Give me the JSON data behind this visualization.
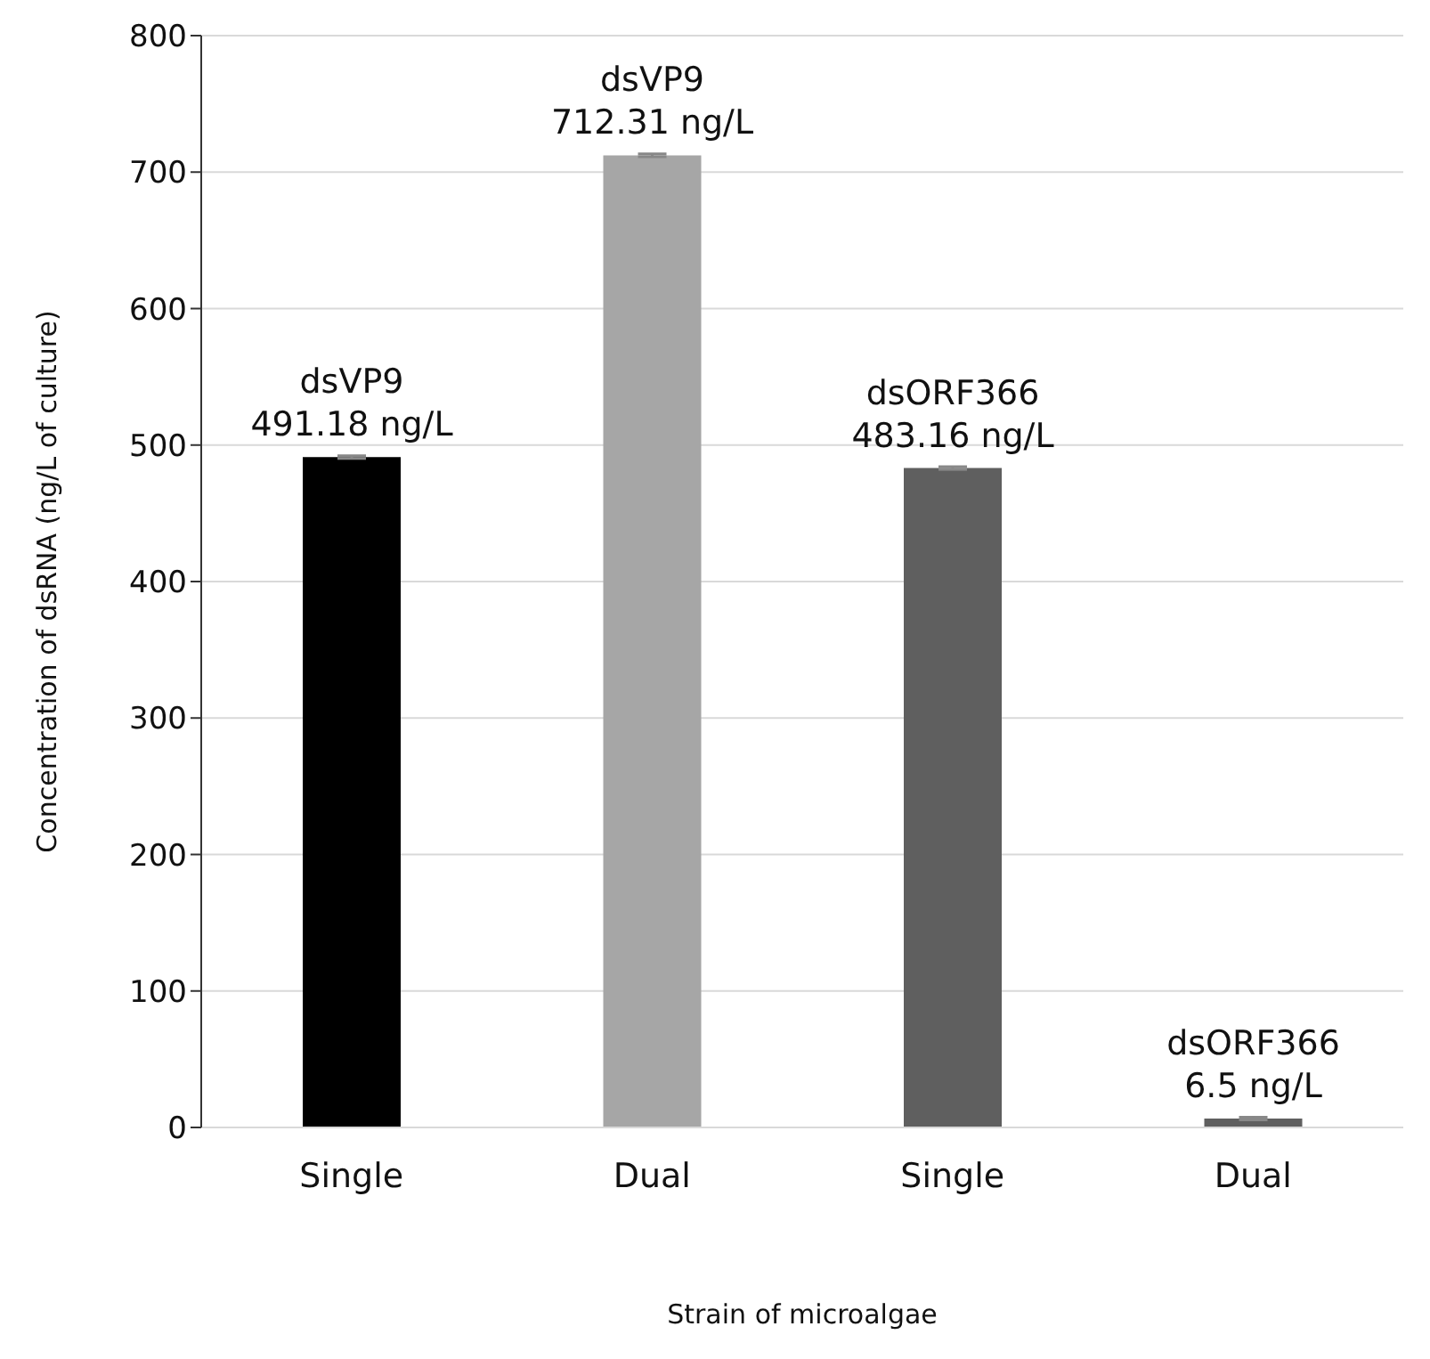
{
  "chart_data": {
    "type": "bar",
    "xlabel": "Strain of microalgae",
    "ylabel": "Concentration of dsRNA (ng/L of culture)",
    "categories": [
      "Single",
      "Dual",
      "Single",
      "Dual"
    ],
    "values": [
      491.18,
      712.31,
      483.16,
      6.5
    ],
    "colors": [
      "#000000",
      "#a6a6a6",
      "#5f5f5f",
      "#5f5f5f"
    ],
    "errors": [
      1,
      1,
      1,
      1
    ],
    "value_labels": [
      "dsVP9\n491.18 ng/L",
      "dsVP9\n712.31 ng/L",
      "dsORF366\n483.16 ng/L",
      "dsORF366\n6.5 ng/L"
    ],
    "ylim": [
      0,
      800
    ],
    "yticks": [
      0,
      100,
      200,
      300,
      400,
      500,
      600,
      700,
      800
    ],
    "grid": "y"
  }
}
